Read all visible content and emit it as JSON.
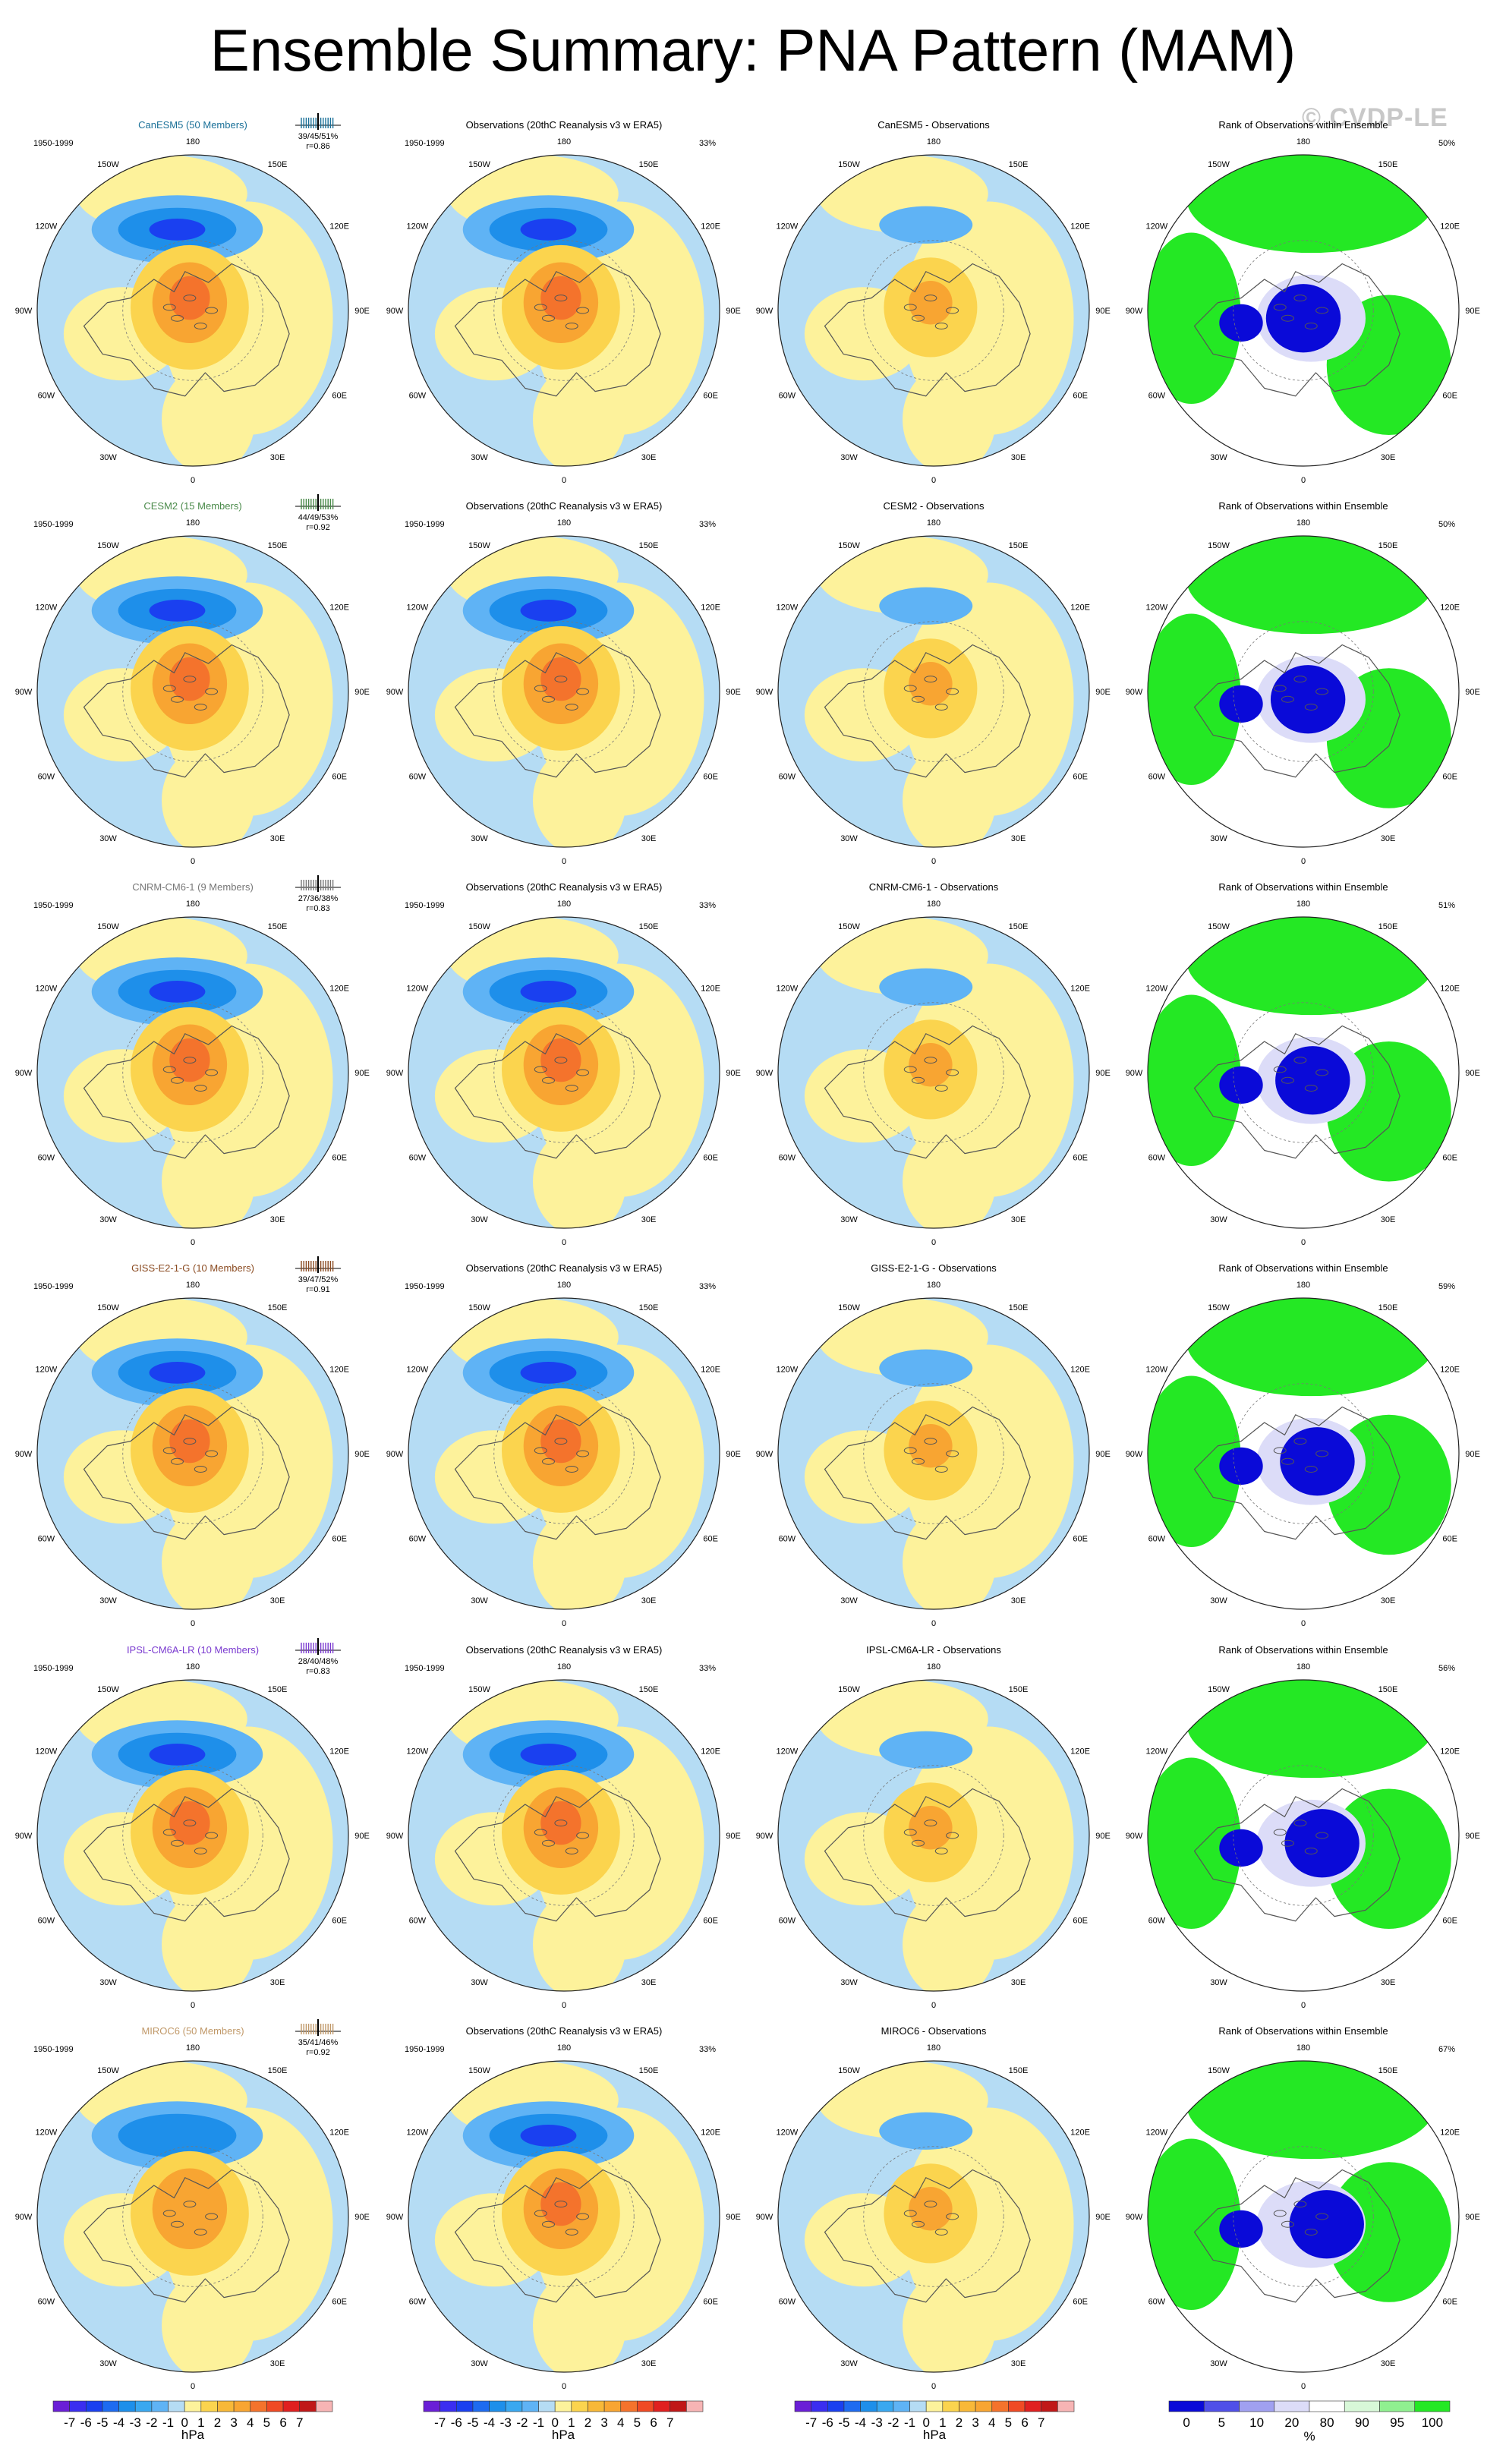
{
  "title": "Ensemble Summary: PNA Pattern (MAM)",
  "watermark": "© CVDP-LE",
  "period": "1950-1999",
  "obs_title": "Observations (20thC Reanalysis v3 w ERA5)",
  "rank_title": "Rank of Observations within Ensemble",
  "obs_pct": "33%",
  "lon_labels": [
    "180",
    "150E",
    "120E",
    "90E",
    "60E",
    "30E",
    "0",
    "30W",
    "60W",
    "90W",
    "120W",
    "150W"
  ],
  "colors": {
    "neg3": "#1a40f0",
    "neg2": "#1e8fea",
    "neg1": "#5fb3f5",
    "neg0": "#b5dcf4",
    "pos0": "#fdf29b",
    "pos1": "#fbd44e",
    "pos2": "#f8a532",
    "pos3": "#f4732c",
    "pos4": "#e02020",
    "rank_low": "#0a0ad8",
    "rank_lowmid": "#dcdcf8",
    "rank_mid": "#ffffff",
    "rank_high": "#24e824",
    "land": "#555555"
  },
  "models": [
    {
      "name": "CanESM5 (50 Members)",
      "color": "#1a7098",
      "stats": "39/45/51%",
      "r": "r=0.86",
      "diff_title": "CanESM5 - Observations",
      "rank_pct": "50%"
    },
    {
      "name": "CESM2 (15 Members)",
      "color": "#4a8a4a",
      "stats": "44/49/53%",
      "r": "r=0.92",
      "diff_title": "CESM2 - Observations",
      "rank_pct": "50%"
    },
    {
      "name": "CNRM-CM6-1 (9 Members)",
      "color": "#777777",
      "stats": "27/36/38%",
      "r": "r=0.83",
      "diff_title": "CNRM-CM6-1 - Observations",
      "rank_pct": "51%"
    },
    {
      "name": "GISS-E2-1-G (10 Members)",
      "color": "#8a4a20",
      "stats": "39/47/52%",
      "r": "r=0.91",
      "diff_title": "GISS-E2-1-G - Observations",
      "rank_pct": "59%"
    },
    {
      "name": "IPSL-CM6A-LR (10 Members)",
      "color": "#7a3ad0",
      "stats": "28/40/48%",
      "r": "r=0.83",
      "diff_title": "IPSL-CM6A-LR - Observations",
      "rank_pct": "56%"
    },
    {
      "name": "MIROC6 (50 Members)",
      "color": "#c09868",
      "stats": "35/41/46%",
      "r": "r=0.92",
      "diff_title": "MIROC6 - Observations",
      "rank_pct": "67%"
    }
  ],
  "colorbar": {
    "hpa_ticks": [
      "-7",
      "-6",
      "-5",
      "-4",
      "-3",
      "-2",
      "-1",
      "0",
      "1",
      "2",
      "3",
      "4",
      "5",
      "6",
      "7"
    ],
    "hpa_colors": [
      "#6a1fd6",
      "#3b2ef0",
      "#1a40f0",
      "#1e6bf0",
      "#1e8fea",
      "#3aa8f0",
      "#5fb3f5",
      "#b5dcf4",
      "#fdf29b",
      "#fbd44e",
      "#f8b838",
      "#f8a532",
      "#f4732c",
      "#f04a24",
      "#e02020",
      "#c01818",
      "#f7b4b4"
    ],
    "hpa_unit": "hPa",
    "rank_ticks": [
      "0",
      "5",
      "10",
      "20",
      "80",
      "90",
      "95",
      "100"
    ],
    "rank_colors": [
      "#0a0ad8",
      "#5050e8",
      "#a0a0f0",
      "#dcdcf8",
      "#ffffff",
      "#d8f8d8",
      "#90f090",
      "#24e824"
    ],
    "rank_unit": "%"
  }
}
